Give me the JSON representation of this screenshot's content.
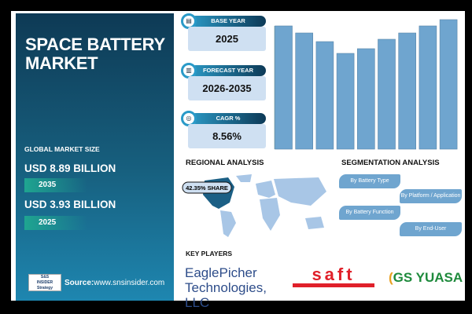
{
  "title": "SPACE BATTERY MARKET",
  "market": {
    "label": "GLOBAL MARKET SIZE",
    "value_2035": "USD 8.89 BILLION",
    "year_2035": "2035",
    "value_2025": "USD 3.93 BILLION",
    "year_2025": "2025"
  },
  "source": {
    "logo_text": "S&S INSIDER Strategy & Stats",
    "label": "Source:",
    "url": "www.snsinsider.com"
  },
  "kpis": [
    {
      "label": "BASE YEAR",
      "value": "2025",
      "icon": "document-icon"
    },
    {
      "label": "FORECAST YEAR",
      "value": "2026-2035",
      "icon": "chart-icon"
    },
    {
      "label": "CAGR %",
      "value": "8.56%",
      "icon": "growth-icon"
    }
  ],
  "regional": {
    "title": "REGIONAL ANALYSIS",
    "share": "42.35% SHARE"
  },
  "segmentation": {
    "title": "SEGMENTATION ANALYSIS",
    "items": [
      "By Battery Type",
      "By Platform / Application",
      "By Battery Function",
      "By End-User"
    ]
  },
  "key_players": {
    "title": "KEY PLAYERS",
    "players": [
      "EaglePicher Technologies, LLC",
      "saft",
      "GS YUASA"
    ]
  },
  "colors": {
    "bar": "#6fa5cf",
    "panel": "#0e3a55",
    "teal": "#1fa590"
  },
  "chart_data": {
    "type": "bar",
    "values": [
      157,
      148,
      137,
      122,
      128,
      140,
      148,
      157,
      165
    ],
    "grid": false
  }
}
